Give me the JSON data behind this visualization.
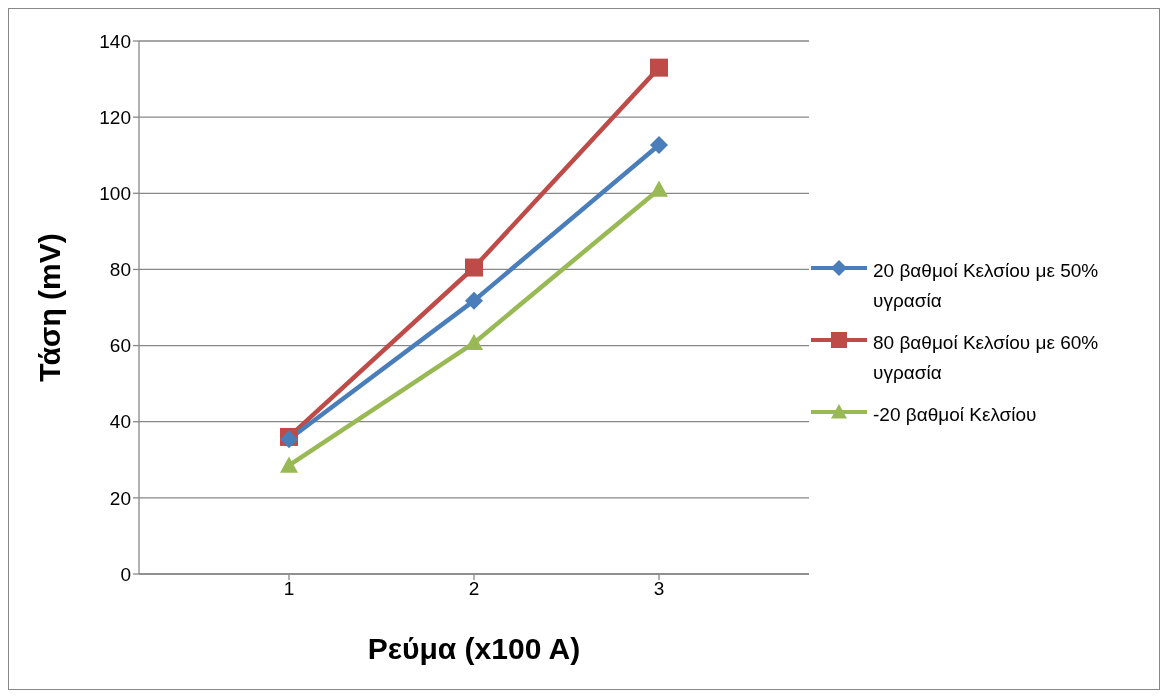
{
  "chart_data": {
    "type": "line",
    "xlabel": "Ρεύμα (x100 A)",
    "ylabel": "Τάση (mV)",
    "categories": [
      "1",
      "2",
      "3"
    ],
    "series": [
      {
        "name": "20 βαθμοί Κελσίου με 50% υγρασία",
        "color": "#4a7ebb",
        "marker": "diamond",
        "values": [
          35.4,
          71.8,
          112.7
        ]
      },
      {
        "name": "80 βαθμοί Κελσίου με 60% υγρασία",
        "color": "#be4b48",
        "marker": "square",
        "values": [
          36,
          80.5,
          133
        ]
      },
      {
        "name": "-20 βαθμοί Κελσίου",
        "color": "#98b954",
        "marker": "triangle",
        "values": [
          28.5,
          60.7,
          101
        ]
      }
    ],
    "ylim": [
      0,
      140
    ],
    "yticks": [
      0,
      20,
      40,
      60,
      80,
      100,
      120,
      140
    ],
    "grid": "y",
    "legend": "right",
    "line_style": "solid"
  }
}
